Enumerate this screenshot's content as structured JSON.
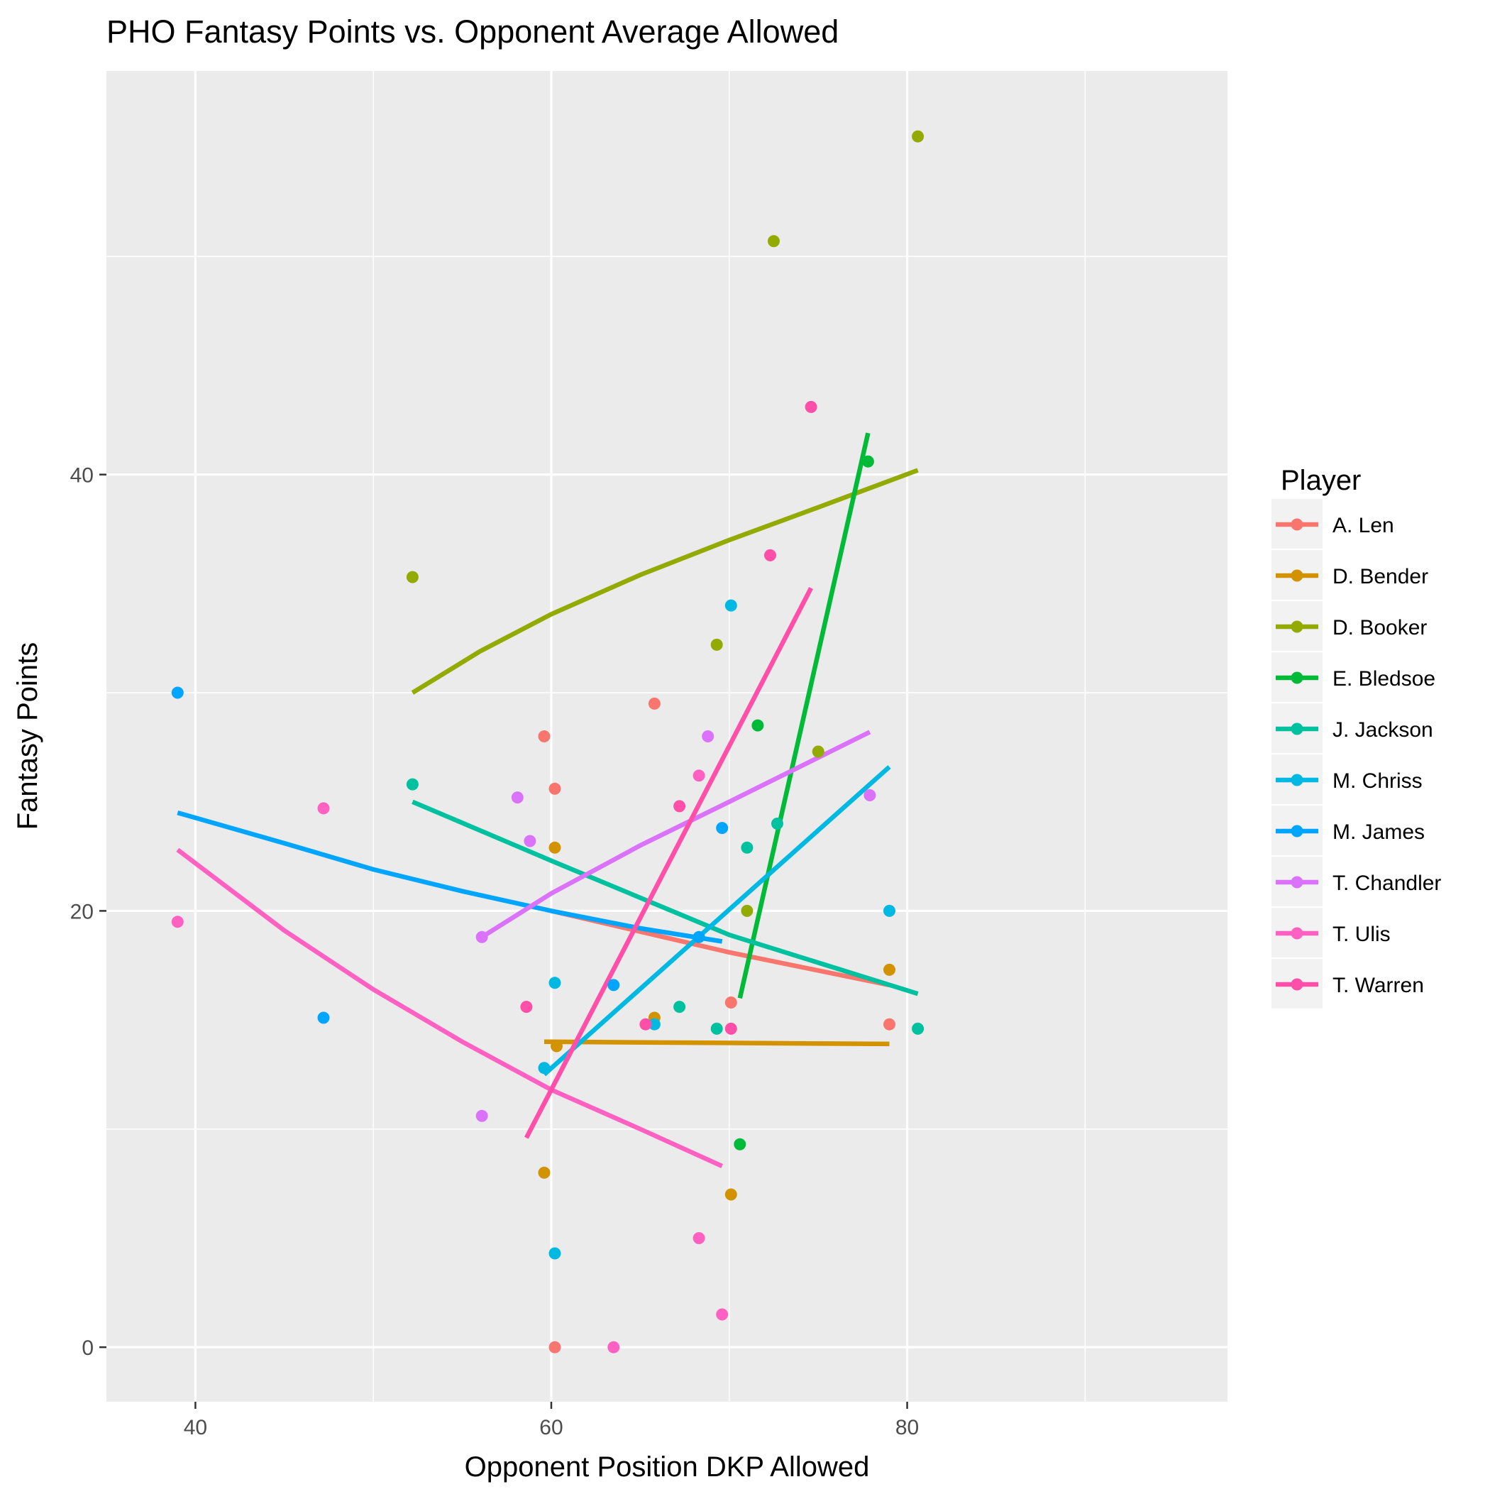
{
  "chart_data": {
    "type": "scatter",
    "title": "PHO Fantasy Points vs. Opponent Average Allowed",
    "xlabel": "Opponent Position DKP Allowed",
    "ylabel": "Fantasy Points",
    "xlim": [
      35,
      98
    ],
    "ylim": [
      -2.5,
      58.5
    ],
    "x_ticks": [
      40,
      60,
      80
    ],
    "y_ticks": [
      0,
      20,
      40
    ],
    "grid": true,
    "legend": {
      "title": "Player",
      "position": "right"
    },
    "series": [
      {
        "name": "A. Len",
        "color": "#F8766D",
        "points": [
          [
            59.6,
            28.0
          ],
          [
            60.2,
            25.6
          ],
          [
            65.8,
            29.5
          ],
          [
            70.1,
            15.8
          ],
          [
            79.0,
            14.8
          ],
          [
            60.2,
            0.0
          ]
        ],
        "fit": [
          [
            60.0,
            20.0
          ],
          [
            70.0,
            18.1
          ],
          [
            79.0,
            16.6
          ]
        ]
      },
      {
        "name": "D. Bender",
        "color": "#D39200",
        "points": [
          [
            60.2,
            22.9
          ],
          [
            60.3,
            13.8
          ],
          [
            65.8,
            15.1
          ],
          [
            59.6,
            8.0
          ],
          [
            70.1,
            7.0
          ],
          [
            79.0,
            17.3
          ]
        ],
        "fit": [
          [
            59.6,
            14.0
          ],
          [
            79.0,
            13.9
          ]
        ]
      },
      {
        "name": "D. Booker",
        "color": "#93AA00",
        "points": [
          [
            52.2,
            35.3
          ],
          [
            69.3,
            32.2
          ],
          [
            72.5,
            50.7
          ],
          [
            71.0,
            20.0
          ],
          [
            75.0,
            27.3
          ],
          [
            80.6,
            55.5
          ]
        ],
        "fit": [
          [
            52.2,
            30.0
          ],
          [
            56.0,
            31.9
          ],
          [
            60.0,
            33.6
          ],
          [
            65.0,
            35.4
          ],
          [
            70.0,
            37.0
          ],
          [
            75.0,
            38.5
          ],
          [
            80.6,
            40.2
          ]
        ]
      },
      {
        "name": "E. Bledsoe",
        "color": "#00BA38",
        "points": [
          [
            77.8,
            40.6
          ],
          [
            71.6,
            28.5
          ],
          [
            70.6,
            9.3
          ]
        ],
        "fit": [
          [
            70.6,
            16.0
          ],
          [
            77.8,
            41.9
          ]
        ]
      },
      {
        "name": "J. Jackson",
        "color": "#00C19F",
        "points": [
          [
            52.2,
            25.8
          ],
          [
            67.2,
            15.6
          ],
          [
            69.3,
            14.6
          ],
          [
            71.0,
            22.9
          ],
          [
            72.7,
            24.0
          ],
          [
            80.6,
            14.6
          ]
        ],
        "fit": [
          [
            52.2,
            25.0
          ],
          [
            60.0,
            22.3
          ],
          [
            70.0,
            18.9
          ],
          [
            80.6,
            16.2
          ]
        ]
      },
      {
        "name": "M. Chriss",
        "color": "#00B9E3",
        "points": [
          [
            59.6,
            12.8
          ],
          [
            60.2,
            16.7
          ],
          [
            65.8,
            14.8
          ],
          [
            70.1,
            34.0
          ],
          [
            60.2,
            4.3
          ],
          [
            79.0,
            20.0
          ]
        ],
        "fit": [
          [
            59.6,
            12.5
          ],
          [
            79.0,
            26.6
          ]
        ]
      },
      {
        "name": "M. James",
        "color": "#00A5FF",
        "points": [
          [
            39.0,
            30.0
          ],
          [
            47.2,
            15.1
          ],
          [
            63.5,
            16.6
          ],
          [
            68.3,
            18.8
          ],
          [
            69.6,
            23.8
          ]
        ],
        "fit": [
          [
            39.0,
            24.5
          ],
          [
            45.0,
            23.1
          ],
          [
            50.0,
            21.9
          ],
          [
            55.0,
            20.9
          ],
          [
            60.0,
            20.0
          ],
          [
            65.0,
            19.2
          ],
          [
            69.6,
            18.6
          ]
        ]
      },
      {
        "name": "T. Chandler",
        "color": "#DB72FB",
        "points": [
          [
            56.1,
            18.8
          ],
          [
            58.1,
            25.2
          ],
          [
            58.8,
            23.2
          ],
          [
            68.8,
            28.0
          ],
          [
            77.9,
            25.3
          ],
          [
            56.1,
            10.6
          ]
        ],
        "fit": [
          [
            56.1,
            18.8
          ],
          [
            60.0,
            20.8
          ],
          [
            65.0,
            23.0
          ],
          [
            70.0,
            25.0
          ],
          [
            77.9,
            28.2
          ]
        ]
      },
      {
        "name": "T. Ulis",
        "color": "#FF61C3",
        "points": [
          [
            39.0,
            19.5
          ],
          [
            47.2,
            24.7
          ],
          [
            68.3,
            26.2
          ],
          [
            69.6,
            1.5
          ],
          [
            68.3,
            5.0
          ],
          [
            63.5,
            0.0
          ]
        ],
        "fit": [
          [
            39.0,
            22.8
          ],
          [
            45.0,
            19.1
          ],
          [
            50.0,
            16.4
          ],
          [
            55.0,
            14.0
          ],
          [
            60.0,
            11.8
          ],
          [
            65.0,
            10.0
          ],
          [
            69.6,
            8.3
          ]
        ]
      },
      {
        "name": "T. Warren",
        "color": "#FF4FA8",
        "points": [
          [
            58.6,
            15.6
          ],
          [
            65.3,
            14.8
          ],
          [
            67.2,
            24.8
          ],
          [
            70.1,
            14.6
          ],
          [
            72.3,
            36.3
          ],
          [
            74.6,
            43.1
          ]
        ],
        "fit": [
          [
            58.6,
            9.6
          ],
          [
            74.6,
            34.8
          ]
        ]
      }
    ]
  }
}
